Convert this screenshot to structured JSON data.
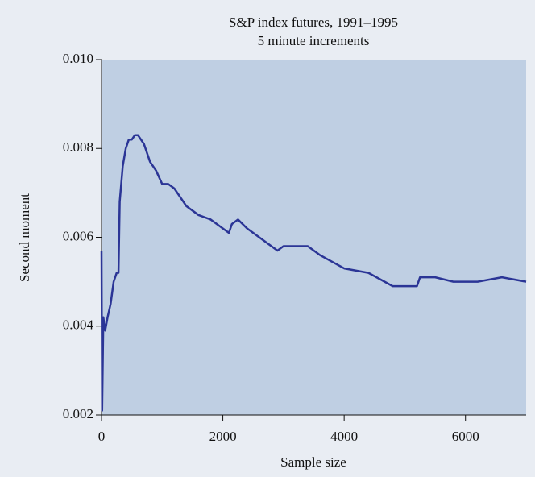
{
  "chart_data": {
    "type": "line",
    "title": "S&P index futures, 1991–1995",
    "subtitle": "5 minute increments",
    "x_label": "Sample size",
    "y_label": "Second moment",
    "x": [
      0,
      10,
      30,
      60,
      100,
      150,
      200,
      250,
      280,
      300,
      350,
      400,
      450,
      500,
      550,
      600,
      650,
      700,
      800,
      900,
      1000,
      1100,
      1200,
      1400,
      1600,
      1800,
      2000,
      2100,
      2150,
      2250,
      2400,
      2600,
      2800,
      2900,
      3000,
      3400,
      3600,
      4000,
      4400,
      4800,
      5000,
      5200,
      5250,
      5500,
      5800,
      6200,
      6600,
      7000
    ],
    "series": [
      {
        "name": "Second moment",
        "color": "#2b3596",
        "values": [
          0.0057,
          0.0021,
          0.0042,
          0.0039,
          0.0042,
          0.0045,
          0.005,
          0.0052,
          0.0052,
          0.0068,
          0.0076,
          0.008,
          0.0082,
          0.0082,
          0.0083,
          0.0083,
          0.0082,
          0.0081,
          0.0077,
          0.0075,
          0.0072,
          0.0072,
          0.0071,
          0.0067,
          0.0065,
          0.0064,
          0.0062,
          0.0061,
          0.0063,
          0.0064,
          0.0062,
          0.006,
          0.0058,
          0.0057,
          0.0058,
          0.0058,
          0.0056,
          0.0053,
          0.0052,
          0.0049,
          0.0049,
          0.0049,
          0.0051,
          0.0051,
          0.005,
          0.005,
          0.0051,
          0.005
        ]
      }
    ],
    "xlim": [
      0,
      7000
    ],
    "xticks": [
      0,
      2000,
      4000,
      6000
    ],
    "ylim": [
      0.002,
      0.01
    ],
    "yticks": [
      0.002,
      0.004,
      0.006,
      0.008,
      {
        "value": 0.01,
        "label": "0.010"
      }
    ],
    "plot_color": "#bfcfe3"
  }
}
